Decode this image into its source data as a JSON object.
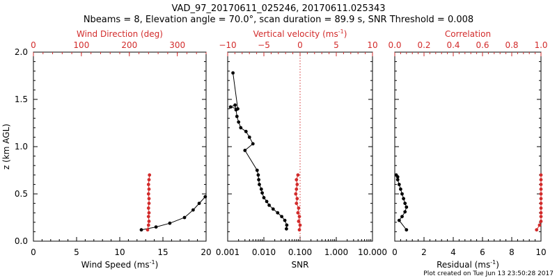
{
  "header": {
    "title_line1": "VAD_97_20170611_025246, 20170611.025343",
    "title_line2": "Nbeams = 8, Elevation angle = 70.0°, scan duration = 89.9 s, SNR Threshold = 0.008"
  },
  "footer": {
    "text": "Plot created on Tue Jun 13 23:50:28 2017"
  },
  "colors": {
    "primary": "#000000",
    "secondary": "#d22b2b"
  },
  "chart_data": [
    {
      "type": "line",
      "ylabel": "z (km AGL)",
      "ylim": [
        0.0,
        2.0
      ],
      "yticks": [
        "0.0",
        "0.5",
        "1.0",
        "1.5",
        "2.0"
      ],
      "bottom_axis": {
        "label": "Wind Speed (ms",
        "label_sup": "-1",
        "label_end": ")",
        "range": [
          0,
          20
        ],
        "ticks": [
          "0",
          "5",
          "10",
          "15",
          "20"
        ],
        "scale": "linear"
      },
      "top_axis": {
        "label": "Wind Direction (deg)",
        "range": [
          0,
          360
        ],
        "ticks": [
          "0",
          "100",
          "200",
          "300"
        ],
        "scale": "linear"
      },
      "series": [
        {
          "axis": "bottom",
          "color": "#000000",
          "x": [
            12.5,
            14.2,
            15.8,
            17.5,
            18.5,
            19.2,
            19.9
          ],
          "y": [
            0.12,
            0.15,
            0.19,
            0.25,
            0.33,
            0.4,
            0.47
          ]
        },
        {
          "axis": "top",
          "color": "#d22b2b",
          "x": [
            238,
            240,
            241,
            240,
            241,
            240,
            241,
            241,
            240,
            241,
            240,
            241,
            242
          ],
          "y": [
            0.12,
            0.17,
            0.21,
            0.26,
            0.3,
            0.35,
            0.4,
            0.45,
            0.5,
            0.55,
            0.6,
            0.65,
            0.7
          ]
        }
      ]
    },
    {
      "type": "line",
      "ylim": [
        0.0,
        2.0
      ],
      "bottom_axis": {
        "label": "SNR",
        "range": [
          0.001,
          10.0
        ],
        "ticks": [
          "0.001",
          "0.010",
          "0.100",
          "1.000",
          "10.000"
        ],
        "scale": "log"
      },
      "top_axis": {
        "label": "Vertical velocity (ms",
        "label_sup": "-1",
        "label_end": ")",
        "range": [
          -10,
          10
        ],
        "ticks": [
          "−10",
          "−5",
          "0",
          "5",
          "10"
        ],
        "scale": "linear"
      },
      "reference_line": {
        "axis": "top",
        "x": 0,
        "style": "dotted"
      },
      "series": [
        {
          "axis": "bottom",
          "color": "#000000",
          "x": [
            0.042,
            0.043,
            0.038,
            0.031,
            0.024,
            0.018,
            0.014,
            0.012,
            0.01,
            0.009,
            0.0085,
            0.0075,
            0.0072,
            0.007,
            0.0065,
            0.003,
            0.005,
            0.004,
            0.0032,
            0.0023,
            0.002,
            0.0018,
            0.0017,
            0.0016,
            0.0012,
            0.0019,
            0.0014
          ],
          "y": [
            0.13,
            0.17,
            0.22,
            0.26,
            0.3,
            0.34,
            0.38,
            0.42,
            0.46,
            0.51,
            0.55,
            0.6,
            0.65,
            0.7,
            0.75,
            0.96,
            1.03,
            1.1,
            1.16,
            1.2,
            1.26,
            1.32,
            1.39,
            1.44,
            1.42,
            1.4,
            1.78
          ]
        },
        {
          "axis": "top",
          "color": "#d22b2b",
          "x": [
            -0.1,
            0.0,
            -0.2,
            -0.1,
            -0.3,
            -0.2,
            -0.5,
            -0.4,
            -0.6,
            -0.5,
            -0.4,
            -0.5,
            -0.3
          ],
          "y": [
            0.12,
            0.17,
            0.21,
            0.26,
            0.3,
            0.35,
            0.4,
            0.45,
            0.5,
            0.55,
            0.6,
            0.65,
            0.7
          ]
        }
      ]
    },
    {
      "type": "line",
      "ylim": [
        0.0,
        2.0
      ],
      "bottom_axis": {
        "label": "Residual (ms",
        "label_sup": "-1",
        "label_end": ")",
        "range": [
          0,
          10
        ],
        "ticks": [
          "0",
          "2",
          "4",
          "6",
          "8",
          "10"
        ],
        "scale": "linear"
      },
      "top_axis": {
        "label": "Correlation",
        "range": [
          0.0,
          1.0
        ],
        "ticks": [
          "0.0",
          "0.2",
          "0.4",
          "0.6",
          "0.8",
          "1.0"
        ],
        "scale": "linear"
      },
      "series": [
        {
          "axis": "bottom",
          "color": "#000000",
          "x": [
            0.8,
            0.3,
            0.5,
            0.7,
            0.8,
            0.7,
            0.6,
            0.5,
            0.4,
            0.3,
            0.2,
            0.2,
            0.1
          ],
          "y": [
            0.12,
            0.22,
            0.26,
            0.31,
            0.36,
            0.4,
            0.45,
            0.5,
            0.55,
            0.6,
            0.65,
            0.68,
            0.7
          ]
        },
        {
          "axis": "top",
          "color": "#d22b2b",
          "x": [
            0.97,
            0.99,
            1.0,
            1.0,
            1.0,
            1.0,
            1.0,
            1.0,
            1.0,
            1.0,
            1.0,
            1.0,
            1.0
          ],
          "y": [
            0.12,
            0.17,
            0.21,
            0.26,
            0.3,
            0.35,
            0.4,
            0.45,
            0.5,
            0.55,
            0.6,
            0.65,
            0.7
          ]
        }
      ]
    }
  ]
}
